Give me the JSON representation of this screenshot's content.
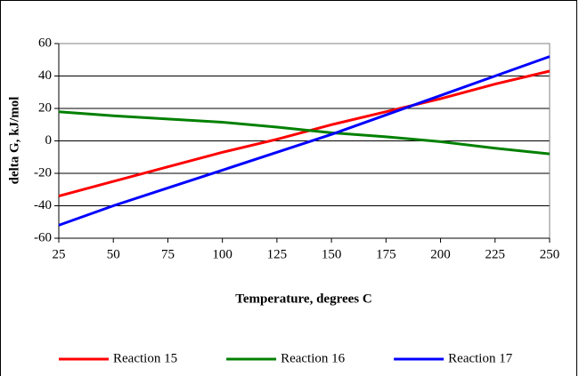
{
  "chart_data": {
    "type": "line",
    "xlabel": "Temperature, degrees C",
    "ylabel": "delta G, kJ/mol",
    "x": [
      25,
      50,
      75,
      100,
      125,
      150,
      175,
      200,
      225,
      250
    ],
    "series": [
      {
        "name": "Reaction 15",
        "color": "#ff0000",
        "values": [
          -34,
          -25,
          -16,
          -7,
          1,
          10,
          18,
          26,
          35,
          43
        ]
      },
      {
        "name": "Reaction 16",
        "color": "#008000",
        "values": [
          18,
          15.5,
          13.5,
          11.5,
          8.5,
          5,
          2.5,
          -0.5,
          -4.5,
          -8
        ]
      },
      {
        "name": "Reaction 17",
        "color": "#0000ff",
        "values": [
          -52,
          -40,
          -29,
          -18,
          -7,
          4,
          16,
          28,
          40,
          52
        ]
      }
    ],
    "xlim": [
      25,
      250
    ],
    "xticks": [
      25,
      50,
      75,
      100,
      125,
      150,
      175,
      200,
      225,
      250
    ],
    "ylim": [
      -60,
      60
    ],
    "yticks": [
      -60,
      -40,
      -20,
      0,
      20,
      40,
      60
    ],
    "grid": true,
    "legend": "bottom"
  }
}
